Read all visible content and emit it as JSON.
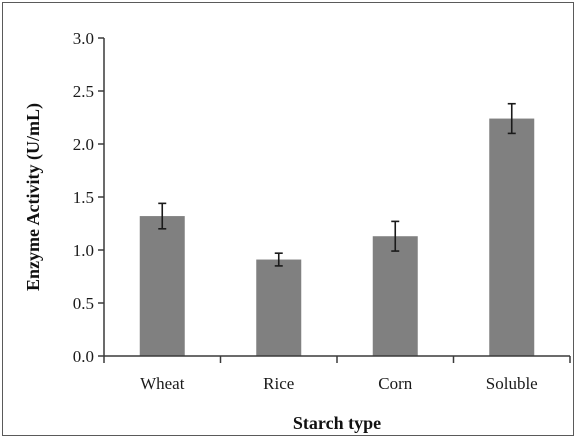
{
  "chart_data": {
    "type": "bar",
    "xlabel": "Starch type",
    "ylabel": "Enzyme Activity (U/mL)",
    "categories": [
      "Wheat",
      "Rice",
      "Corn",
      "Soluble"
    ],
    "values": [
      1.32,
      0.91,
      1.13,
      2.24
    ],
    "errors": [
      0.12,
      0.06,
      0.14,
      0.14
    ],
    "ylim": [
      0,
      3.0
    ],
    "yticks": [
      "0.0",
      "0.5",
      "1.0",
      "1.5",
      "2.0",
      "2.5",
      "3.0"
    ],
    "ytick_values": [
      0,
      0.5,
      1.0,
      1.5,
      2.0,
      2.5,
      3.0
    ],
    "grid": false,
    "legend": "none",
    "colors": {
      "bar": "#808080",
      "axis": "#3a3a3a",
      "error_bar": "#1a1a1a"
    }
  }
}
